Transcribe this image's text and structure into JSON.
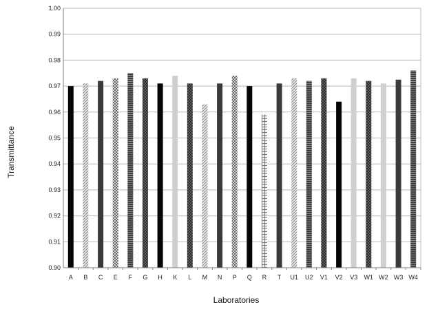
{
  "chart_data": {
    "type": "bar",
    "xlabel": "Laboratories",
    "ylabel": "Transmittance",
    "ylim": [
      0.9,
      1.0
    ],
    "yticks": [
      "0.90",
      "0.91",
      "0.92",
      "0.93",
      "0.94",
      "0.95",
      "0.96",
      "0.97",
      "0.98",
      "0.99",
      "1.00"
    ],
    "grid": true,
    "legend": "none",
    "categories": [
      "A",
      "B",
      "C",
      "E",
      "F",
      "G",
      "H",
      "K",
      "L",
      "M",
      "N",
      "P",
      "Q",
      "R",
      "T",
      "U1",
      "U2",
      "V1",
      "V2",
      "V3",
      "W1",
      "W2",
      "W3",
      "W4"
    ],
    "values": [
      0.97,
      0.971,
      0.972,
      0.973,
      0.975,
      0.973,
      0.971,
      0.974,
      0.971,
      0.963,
      0.971,
      0.974,
      0.97,
      0.959,
      0.971,
      0.973,
      0.972,
      0.973,
      0.964,
      0.973,
      0.972,
      0.971,
      0.9725,
      0.976
    ],
    "bar_fills": [
      "solid-black",
      "hatch-light",
      "solid-dark",
      "hatch-check",
      "hatch-dense",
      "hatch-check-dark",
      "solid-black",
      "solid-light",
      "hatch-check-dark",
      "hatch-light",
      "solid-dark",
      "hatch-check",
      "solid-black",
      "hatch-grid",
      "solid-dark",
      "hatch-light",
      "hatch-dense",
      "hatch-check-dark",
      "solid-black",
      "solid-light",
      "hatch-check-dark",
      "solid-light",
      "solid-dark",
      "hatch-dense"
    ]
  }
}
